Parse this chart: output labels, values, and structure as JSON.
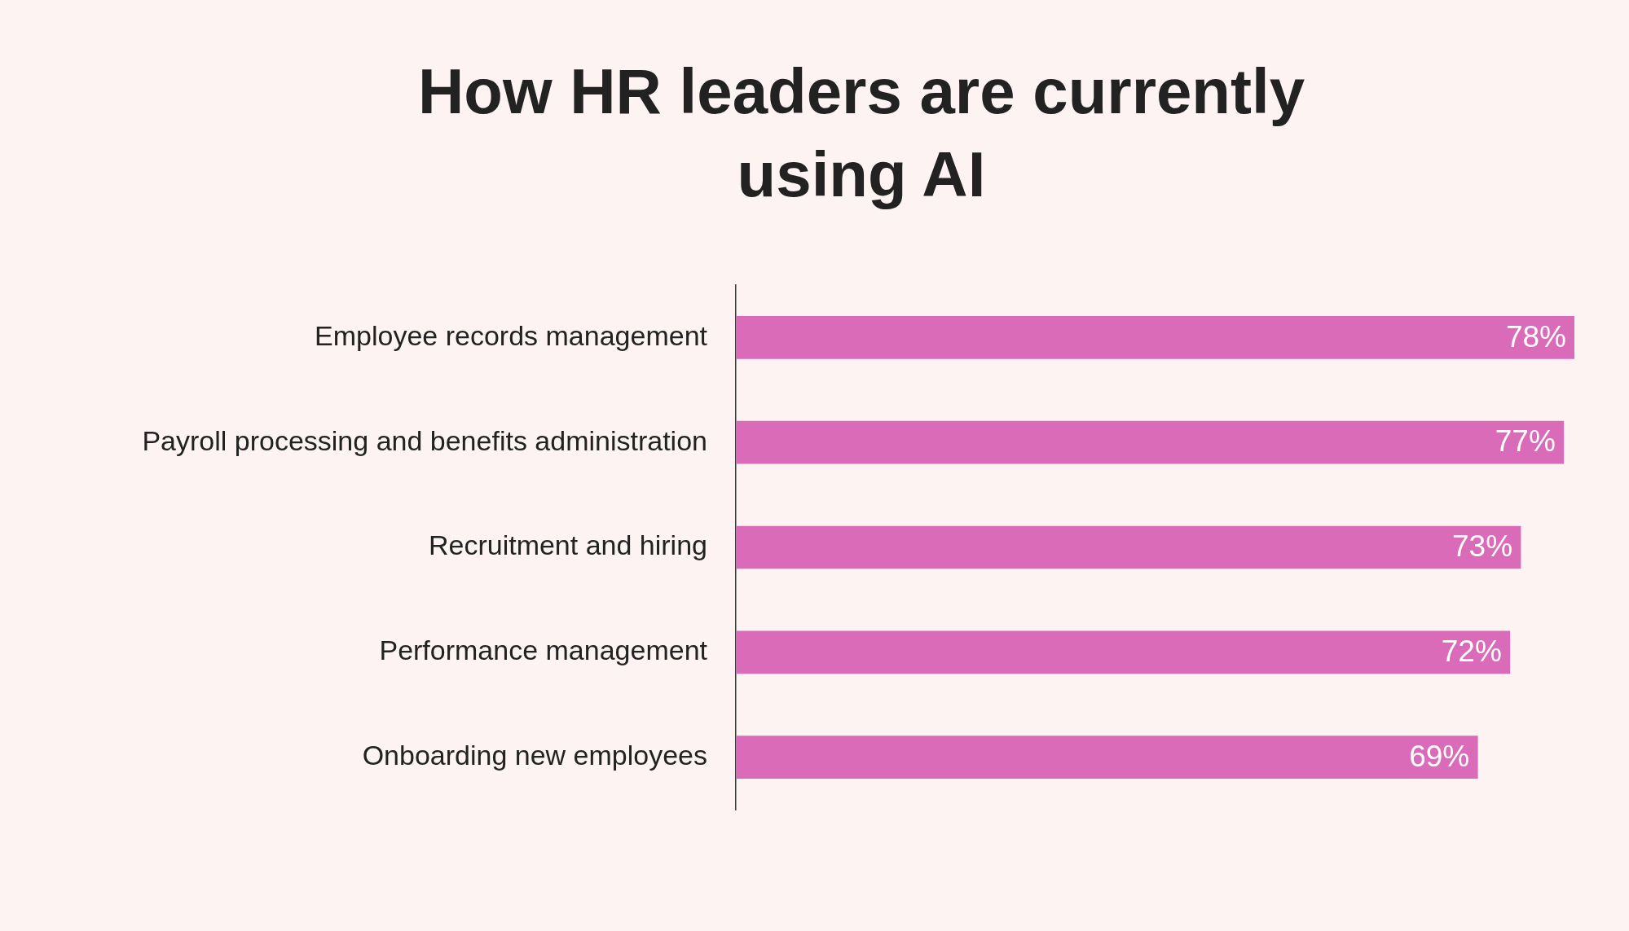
{
  "chart_data": {
    "type": "bar",
    "orientation": "horizontal",
    "title": "How HR leaders are currently using AI",
    "categories": [
      "Employee records management",
      "Payroll processing and benefits administration",
      "Recruitment and hiring",
      "Performance management",
      "Onboarding new employees"
    ],
    "values": [
      78,
      77,
      73,
      72,
      69
    ],
    "color": "#d96bb8",
    "value_labels": [
      "78%",
      "77%",
      "73%",
      "72%",
      "69%"
    ],
    "tick_labels": "y"
  }
}
